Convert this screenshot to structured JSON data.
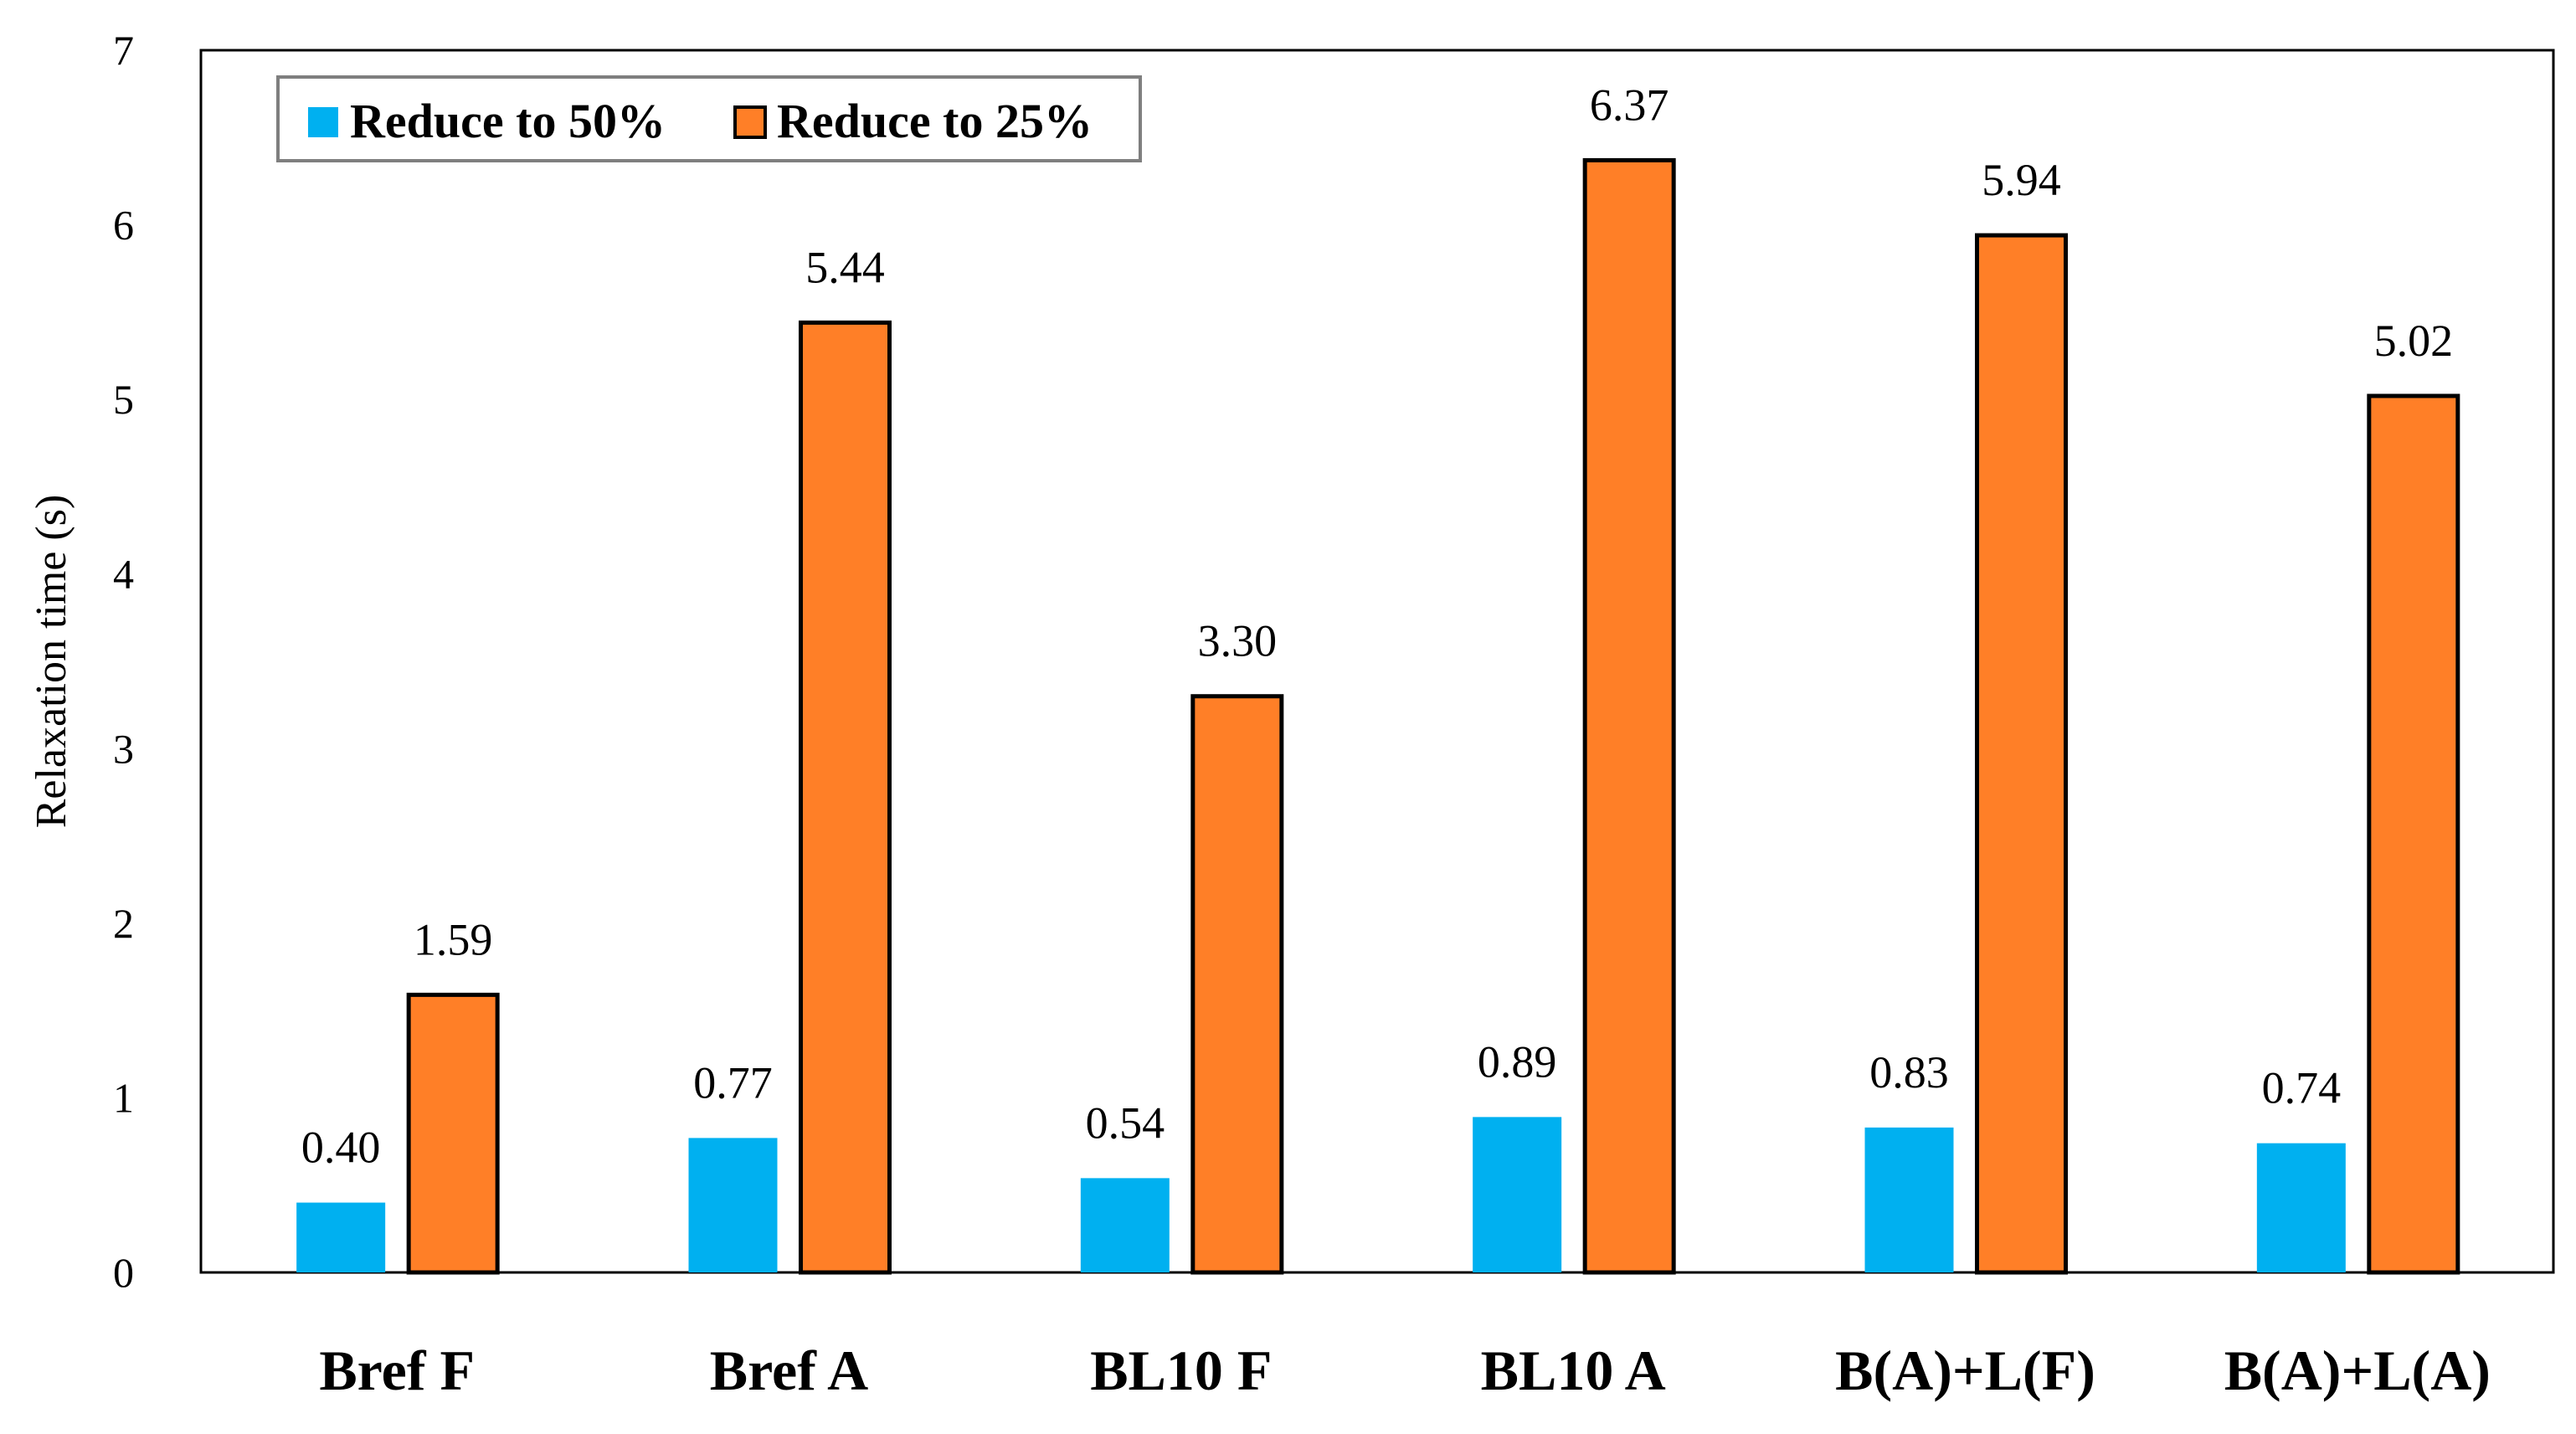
{
  "chart_data": {
    "type": "bar",
    "title": "",
    "xlabel": "",
    "ylabel": "Relaxation time (s)",
    "ylim": [
      0,
      7
    ],
    "yticks": [
      "0",
      "1",
      "2",
      "3",
      "4",
      "5",
      "6",
      "7"
    ],
    "categories": [
      "Bref  F",
      "Bref  A",
      "BL10  F",
      "BL10  A",
      "B(A)+L(F)",
      "B(A)+L(A)"
    ],
    "series": [
      {
        "name": "Reduce to 50%",
        "color": "#00b0f0",
        "values": [
          0.4,
          0.77,
          0.54,
          0.89,
          0.83,
          0.74
        ],
        "labels": [
          "0.40",
          "0.77",
          "0.54",
          "0.89",
          "0.83",
          "0.74"
        ]
      },
      {
        "name": "Reduce to 25%",
        "color": "#ff7f27",
        "values": [
          1.59,
          5.44,
          3.3,
          6.37,
          5.94,
          5.02
        ],
        "labels": [
          "1.59",
          "5.44",
          "3.30",
          "6.37",
          "5.94",
          "5.02"
        ]
      }
    ],
    "legend_position": "top-left",
    "grid": false
  }
}
